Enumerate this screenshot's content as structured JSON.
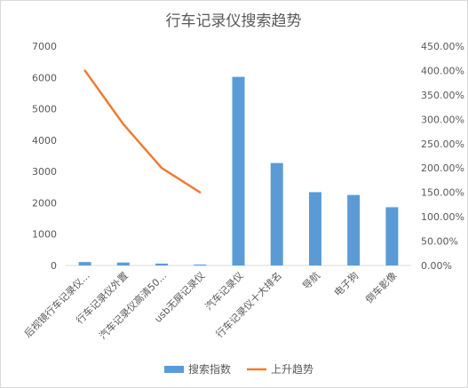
{
  "chart_data": {
    "type": "bar",
    "title": "行车记录仪搜索趋势",
    "categories": [
      "后视镜行车记录仪...",
      "行车记录仪外置",
      "汽车记录仪高清50...",
      "usb无屏记录仪",
      "汽车记录仪",
      "行车记录仪十大排名",
      "导航",
      "电子狗",
      "倒车影像"
    ],
    "series": [
      {
        "name": "搜索指数",
        "type": "bar",
        "axis": "left",
        "color": "#5b9bd5",
        "values": [
          110,
          95,
          60,
          30,
          6020,
          3270,
          2340,
          2250,
          1860
        ]
      },
      {
        "name": "上升趋势",
        "type": "line",
        "axis": "right",
        "color": "#ed7d31",
        "values": [
          4.0,
          2.9,
          2.0,
          1.5,
          null,
          null,
          null,
          null,
          null
        ]
      }
    ],
    "ylim": [
      0,
      7000
    ],
    "yticks": [
      "0",
      "1000",
      "2000",
      "3000",
      "4000",
      "5000",
      "6000",
      "7000"
    ],
    "y2lim": [
      0,
      4.5
    ],
    "y2ticks": [
      "0.00%",
      "50.00%",
      "100.00%",
      "150.00%",
      "200.00%",
      "250.00%",
      "300.00%",
      "350.00%",
      "400.00%",
      "450.00%"
    ],
    "grid": false,
    "legend": "bottom"
  }
}
